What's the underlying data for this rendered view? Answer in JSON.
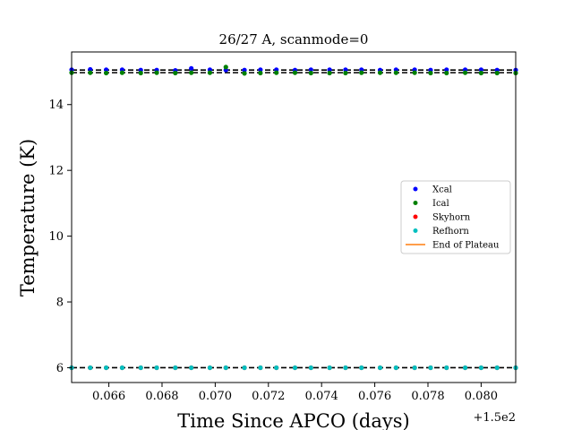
{
  "chart_data": {
    "type": "scatter",
    "title": "26/27 A, scanmode=0",
    "xlabel": "Time Since APCO (days)",
    "ylabel": "Temperature (K)",
    "x_offset_label": "+1.5e2",
    "xlim": [
      150.0646,
      150.0813
    ],
    "ylim": [
      5.55,
      15.6
    ],
    "xticks": [
      150.066,
      150.068,
      150.07,
      150.072,
      150.074,
      150.076,
      150.078,
      150.08
    ],
    "xtick_labels": [
      "0.066",
      "0.068",
      "0.070",
      "0.072",
      "0.074",
      "0.076",
      "0.078",
      "0.080"
    ],
    "yticks": [
      6,
      8,
      10,
      12,
      14
    ],
    "ytick_labels": [
      "6",
      "8",
      "10",
      "12",
      "14"
    ],
    "hlines": [
      15.05,
      14.97,
      6.0
    ],
    "legend_position": "center-right",
    "grid": false,
    "x": [
      150.0646,
      150.0653,
      150.0659,
      150.0665,
      150.0672,
      150.0678,
      150.0685,
      150.0691,
      150.0698,
      150.0704,
      150.0711,
      150.0717,
      150.0723,
      150.073,
      150.0736,
      150.0743,
      150.0749,
      150.0755,
      150.0762,
      150.0768,
      150.0775,
      150.0781,
      150.0787,
      150.0794,
      150.08,
      150.0806,
      150.0813
    ],
    "series": [
      {
        "name": "Xcal",
        "color": "#0000ff",
        "marker": "dot",
        "values": [
          15.06,
          15.07,
          15.06,
          15.06,
          15.05,
          15.05,
          15.04,
          15.1,
          15.06,
          15.05,
          15.05,
          15.06,
          15.06,
          15.05,
          15.06,
          15.06,
          15.06,
          15.06,
          15.05,
          15.06,
          15.06,
          15.05,
          15.06,
          15.06,
          15.06,
          15.05,
          15.05
        ]
      },
      {
        "name": "Ical",
        "color": "#008000",
        "marker": "dot",
        "values": [
          14.97,
          14.97,
          14.96,
          14.97,
          14.96,
          14.97,
          14.96,
          14.97,
          14.97,
          15.14,
          14.95,
          14.96,
          14.97,
          14.97,
          14.96,
          14.96,
          14.96,
          14.97,
          14.97,
          14.97,
          14.97,
          14.96,
          14.96,
          14.97,
          14.96,
          14.96,
          14.96
        ]
      },
      {
        "name": "Skyhorn",
        "color": "#ff0000",
        "marker": "dot",
        "values": [
          6.0,
          6.0,
          6.0,
          6.0,
          6.0,
          6.0,
          6.0,
          6.0,
          6.0,
          6.0,
          6.0,
          6.0,
          6.0,
          6.0,
          6.0,
          6.0,
          6.0,
          6.0,
          6.0,
          6.0,
          6.0,
          6.0,
          6.0,
          6.0,
          6.0,
          6.0,
          6.0
        ]
      },
      {
        "name": "Refhorn",
        "color": "#00bfbf",
        "marker": "dot",
        "values": [
          6.0,
          6.0,
          6.0,
          6.0,
          6.0,
          6.0,
          6.0,
          6.0,
          6.0,
          6.0,
          6.0,
          6.0,
          6.0,
          6.0,
          6.0,
          6.0,
          6.0,
          6.0,
          6.0,
          6.0,
          6.0,
          6.0,
          6.0,
          6.0,
          6.0,
          6.0,
          6.0
        ]
      },
      {
        "name": "End of Plateau",
        "color": "#ff7f0e",
        "marker": "line",
        "values": []
      }
    ]
  }
}
